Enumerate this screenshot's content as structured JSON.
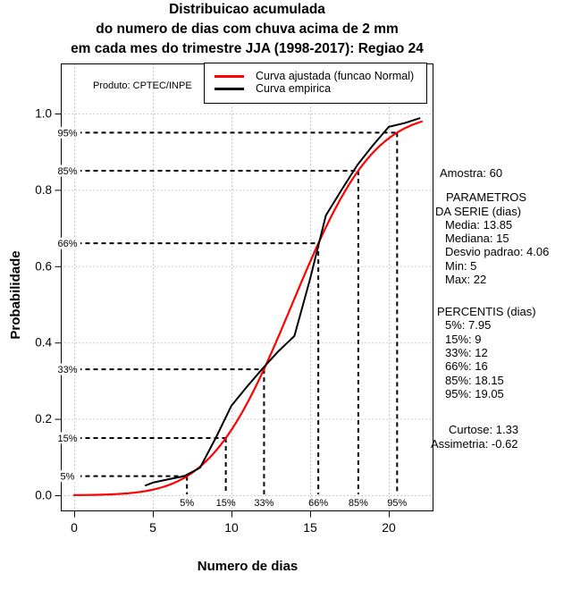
{
  "header": {
    "title_lines": [
      "Distribuicao acumulada",
      "do numero de dias com chuva acima de 2 mm",
      "em cada mes do trimestre JJA (1998-2017): Regiao 24"
    ]
  },
  "produto_label": "Produto: CPTEC/INPE",
  "stats_panel": {
    "lines": [
      "Amostra: 60",
      "PARAMETROS",
      "DA SERIE (dias)",
      "Media: 13.85",
      "Mediana: 15",
      "Desvio padrao: 4.06",
      "Min: 5",
      "Max: 22",
      "PERCENTIS (dias)",
      "5%: 7.95",
      "15%: 9",
      "33%: 12",
      "66%: 16",
      "85%: 18.15",
      "95%: 19.05",
      "Curtose: 1.33",
      "Assimetria: -0.62"
    ]
  },
  "chart_data": {
    "type": "line",
    "title": "Distribuicao acumulada do numero de dias com chuva acima de 2 mm em cada mes do trimestre JJA (1998-2017): Regiao 24",
    "xlabel": "Numero de dias",
    "ylabel": "Probabilidade",
    "xlim": [
      0,
      22
    ],
    "ylim": [
      0,
      1
    ],
    "grid": true,
    "x_ticks": [
      0,
      5,
      10,
      15,
      20
    ],
    "x_tick_labels": [
      "0",
      "5",
      "10",
      "15",
      "20"
    ],
    "y_ticks": [
      0.0,
      0.2,
      0.4,
      0.6,
      0.8,
      1.0
    ],
    "y_tick_labels": [
      "0.0",
      "0.2",
      "0.4",
      "0.6",
      "0.8",
      "1.0"
    ],
    "legend_position": "top",
    "series": [
      {
        "name": "Curva ajustada (funcao Normal)",
        "color": "#ff0000",
        "type": "normal_cdf",
        "mean": 13.85,
        "sd": 4.06,
        "x_start": 0,
        "x_end": 22.1
      },
      {
        "name": "Curva empirica",
        "color": "#000000",
        "type": "points",
        "points": [
          [
            4.5,
            0.025
          ],
          [
            5,
            0.033
          ],
          [
            6,
            0.042
          ],
          [
            7,
            0.05
          ],
          [
            8,
            0.072
          ],
          [
            9,
            0.15
          ],
          [
            10,
            0.235
          ],
          [
            11,
            0.285
          ],
          [
            12,
            0.333
          ],
          [
            13,
            0.378
          ],
          [
            14,
            0.417
          ],
          [
            15,
            0.567
          ],
          [
            16,
            0.733
          ],
          [
            17,
            0.8
          ],
          [
            18,
            0.865
          ],
          [
            19,
            0.917
          ],
          [
            20,
            0.965
          ],
          [
            21,
            0.975
          ],
          [
            22,
            0.988
          ]
        ]
      }
    ],
    "percentile_guides": [
      {
        "label": "5%",
        "p": 0.05,
        "x": 7.17
      },
      {
        "label": "15%",
        "p": 0.15,
        "x": 9.64
      },
      {
        "label": "33%",
        "p": 0.33,
        "x": 12.07
      },
      {
        "label": "66%",
        "p": 0.66,
        "x": 15.52
      },
      {
        "label": "85%",
        "p": 0.85,
        "x": 18.06
      },
      {
        "label": "95%",
        "p": 0.95,
        "x": 20.53
      }
    ],
    "colors": {
      "grid": "#bdbdbd",
      "axis": "#000000",
      "guides": "#000000"
    }
  }
}
